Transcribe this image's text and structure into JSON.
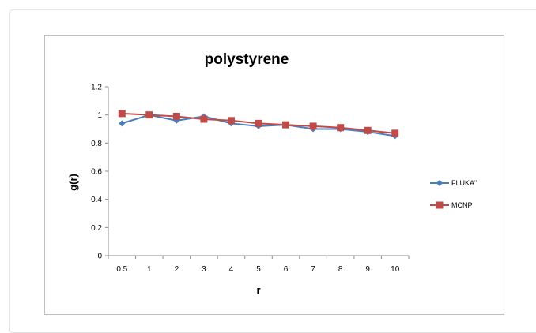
{
  "chart_data": {
    "type": "line",
    "title": "polystyrene",
    "xlabel": "r",
    "ylabel": "g(r)",
    "categories": [
      "0.5",
      "1",
      "2",
      "3",
      "4",
      "5",
      "6",
      "7",
      "8",
      "9",
      "10"
    ],
    "ylim": [
      0,
      1.2
    ],
    "yticks": [
      "0",
      "0.2",
      "0.4",
      "0.6",
      "0.8",
      "1",
      "1.2"
    ],
    "grid": false,
    "legend_position": "right",
    "series": [
      {
        "name": "FLUKA\"",
        "color": "#4a7ebb",
        "marker": "diamond",
        "values": [
          0.94,
          1.0,
          0.96,
          0.99,
          0.94,
          0.92,
          0.93,
          0.9,
          0.9,
          0.88,
          0.85
        ]
      },
      {
        "name": "MCNP",
        "color": "#be4b48",
        "marker": "square",
        "values": [
          1.01,
          1.0,
          0.99,
          0.97,
          0.96,
          0.94,
          0.93,
          0.92,
          0.91,
          0.89,
          0.87
        ]
      }
    ]
  }
}
